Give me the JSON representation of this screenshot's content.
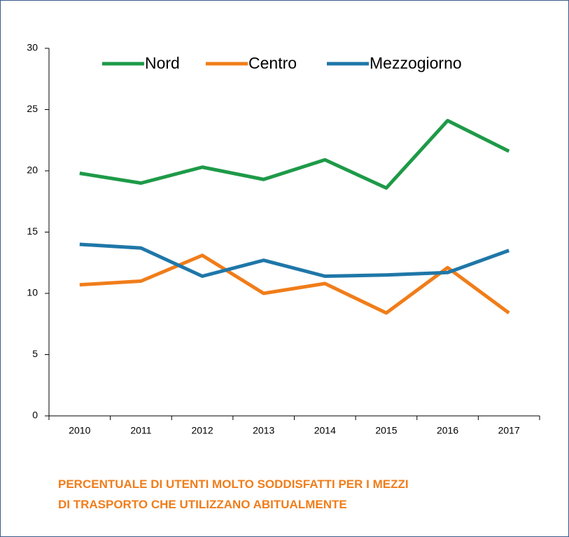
{
  "chart_data": {
    "type": "line",
    "title": [
      "PERCENTUALE DI UTENTI MOLTO SODDISFATTI PER I MEZZI",
      "DI TRASPORTO CHE UTILIZZANO ABITUALMENTE"
    ],
    "categories": [
      "2010",
      "2011",
      "2012",
      "2013",
      "2014",
      "2015",
      "2016",
      "2017"
    ],
    "series": [
      {
        "name": "Nord",
        "color": "#1e9a48",
        "values": [
          19.8,
          19.0,
          20.3,
          19.3,
          20.9,
          18.6,
          24.1,
          21.6
        ]
      },
      {
        "name": "Centro",
        "color": "#f07d1a",
        "values": [
          10.7,
          11.0,
          13.1,
          10.0,
          10.8,
          8.4,
          12.1,
          8.4
        ]
      },
      {
        "name": "Mezzogiorno",
        "color": "#1f77a8",
        "values": [
          14.0,
          13.7,
          11.4,
          12.7,
          11.4,
          11.5,
          11.7,
          13.5
        ]
      }
    ],
    "ylim": [
      0,
      30
    ],
    "yticks": [
      0,
      5,
      10,
      15,
      20,
      25,
      30
    ],
    "grid": false,
    "legend": "top"
  }
}
